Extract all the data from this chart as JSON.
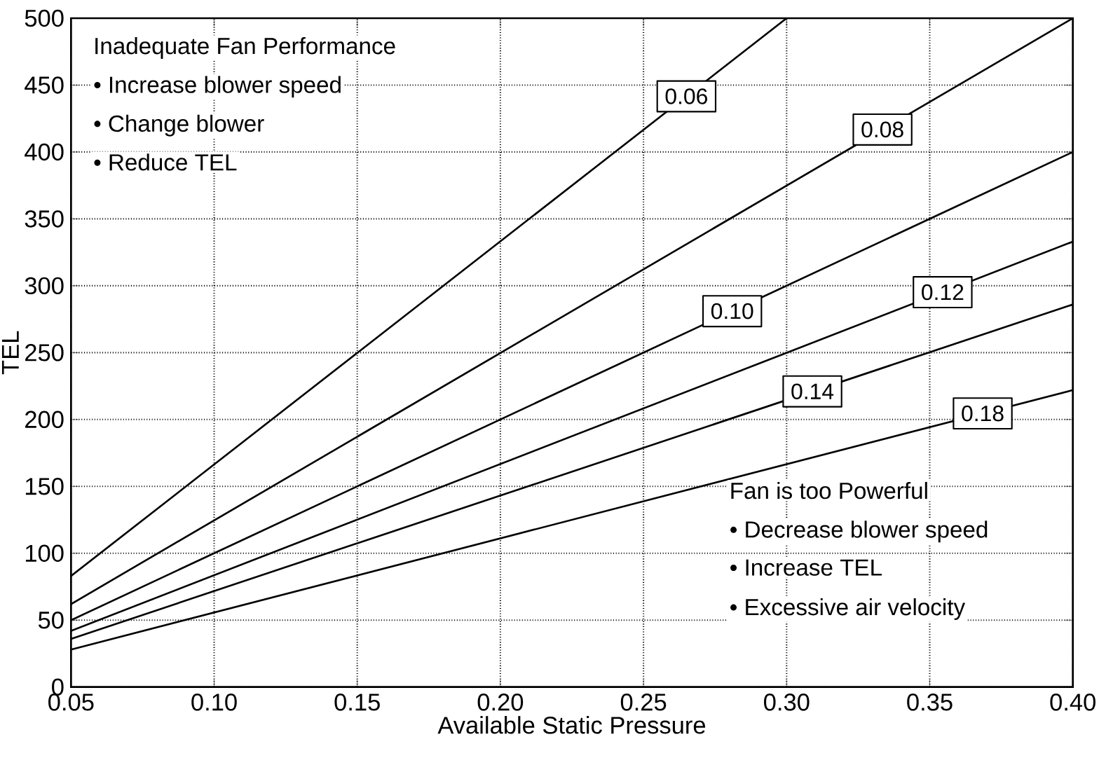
{
  "chart_data": {
    "type": "line",
    "xlabel": "Available Static Pressure",
    "ylabel": "TEL",
    "xlim": [
      0.05,
      0.4
    ],
    "ylim": [
      0,
      500
    ],
    "xticks": [
      0.05,
      {
        "value": 0.1,
        "label": "0.10"
      },
      0.15,
      {
        "value": 0.2,
        "label": "0.20"
      },
      0.25,
      {
        "value": 0.3,
        "label": "0.30"
      },
      0.35,
      {
        "value": 0.4,
        "label": "0.40"
      }
    ],
    "yticks": [
      0,
      50,
      100,
      150,
      200,
      250,
      300,
      350,
      400,
      450,
      500
    ],
    "grid": true,
    "marker": "none",
    "line_style": "solid",
    "series": [
      {
        "name": "0.06",
        "color": "#000000",
        "x": [
          0.05,
          0.3
        ],
        "values": [
          83,
          500
        ]
      },
      {
        "name": "0.08",
        "color": "#000000",
        "x": [
          0.05,
          0.4
        ],
        "values": [
          62,
          500
        ]
      },
      {
        "name": "0.10",
        "color": "#000000",
        "x": [
          0.05,
          0.4
        ],
        "values": [
          50,
          400
        ]
      },
      {
        "name": "0.12",
        "color": "#000000",
        "x": [
          0.05,
          0.4
        ],
        "values": [
          42,
          333
        ]
      },
      {
        "name": "0.14",
        "color": "#000000",
        "x": [
          0.05,
          0.4
        ],
        "values": [
          36,
          286
        ]
      },
      {
        "name": "0.18",
        "color": "#000000",
        "x": [
          0.05,
          0.4
        ],
        "values": [
          28,
          222
        ]
      }
    ],
    "annotations": [
      "Inadequate Fan Performance",
      "• Increase blower speed",
      "• Change blower",
      "• Reduce TEL",
      "Fan is too Powerful",
      "• Decrease blower speed",
      "• Increase TEL",
      "• Excessive air velocity"
    ]
  }
}
